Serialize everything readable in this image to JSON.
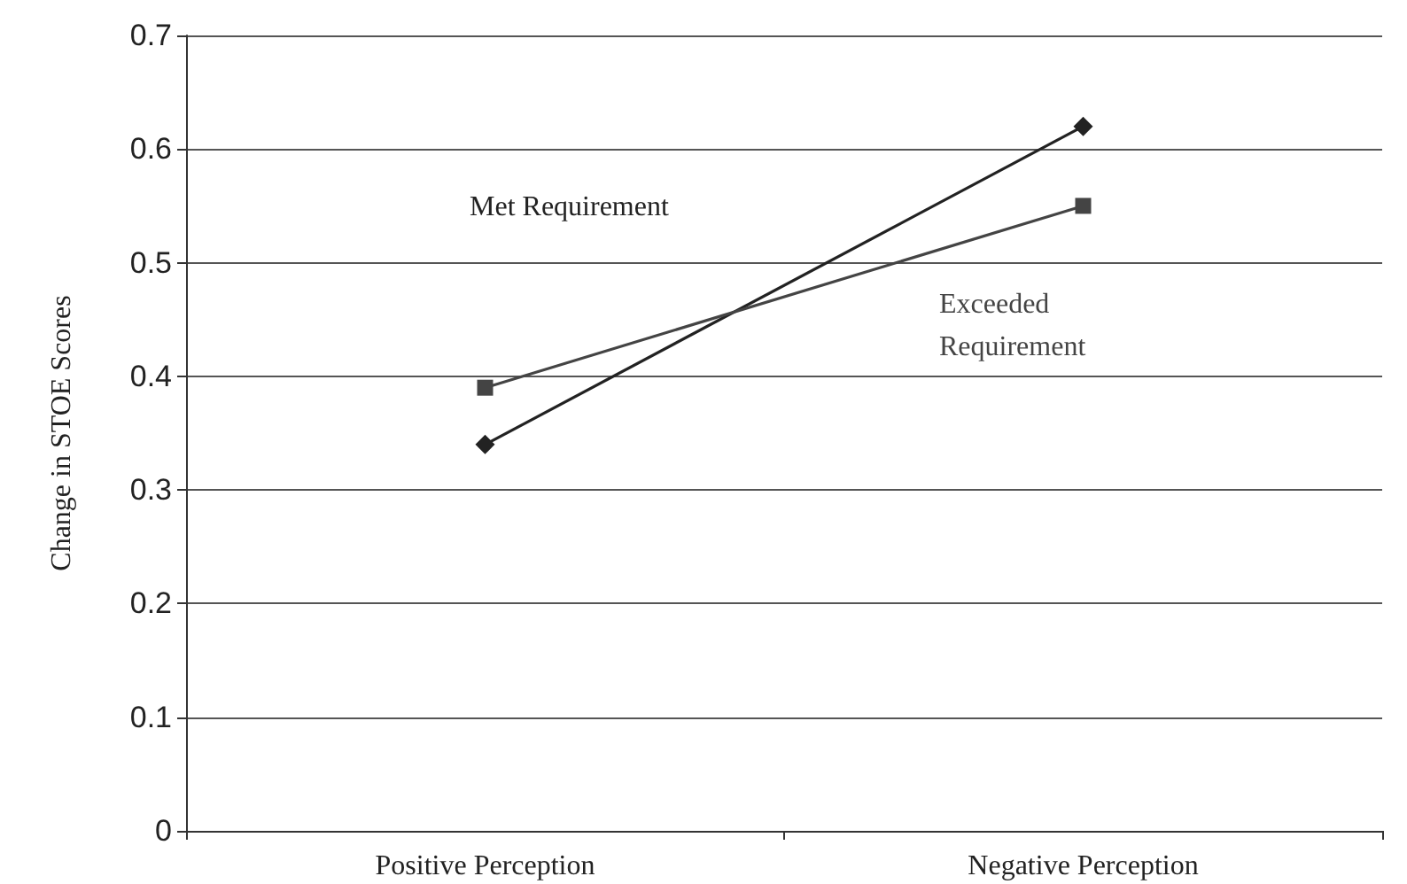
{
  "chart_data": {
    "type": "line",
    "ylabel": "Change in STOE Scores",
    "categories": [
      "Positive Perception",
      "Negative Perception"
    ],
    "series": [
      {
        "name": "Met Requirement",
        "color": "#222222",
        "marker": "diamond",
        "values": [
          0.34,
          0.62
        ]
      },
      {
        "name": "Exceeded Requirement",
        "color": "#444444",
        "marker": "square",
        "values": [
          0.39,
          0.55
        ]
      }
    ],
    "ylim": [
      0,
      0.7
    ],
    "yticks": [
      0,
      0.1,
      0.2,
      0.3,
      0.4,
      0.5,
      0.6,
      0.7
    ],
    "grid": "y",
    "legend": false
  }
}
